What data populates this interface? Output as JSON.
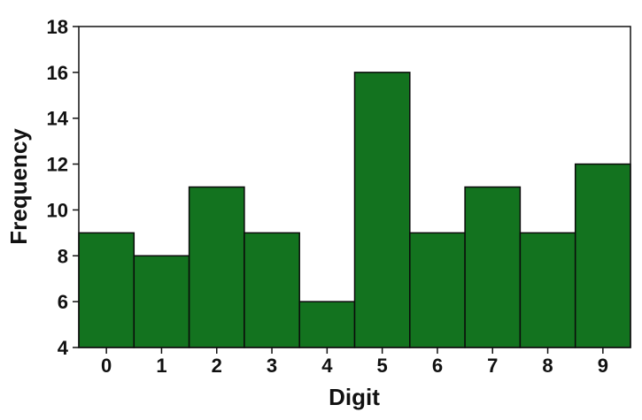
{
  "chart_data": {
    "type": "bar",
    "title": "",
    "xlabel": "Digit",
    "ylabel": "Frequency",
    "categories": [
      "0",
      "1",
      "2",
      "3",
      "4",
      "5",
      "6",
      "7",
      "8",
      "9"
    ],
    "values": [
      9,
      8,
      11,
      9,
      6,
      16,
      9,
      11,
      9,
      12
    ],
    "ylim": [
      4,
      18
    ],
    "yticks": [
      "4",
      "6",
      "8",
      "10",
      "12",
      "14",
      "16",
      "18"
    ],
    "grid": false,
    "legend": "none",
    "bar_color": "#13731f",
    "bar_edge_color": "#0a0a0a"
  }
}
